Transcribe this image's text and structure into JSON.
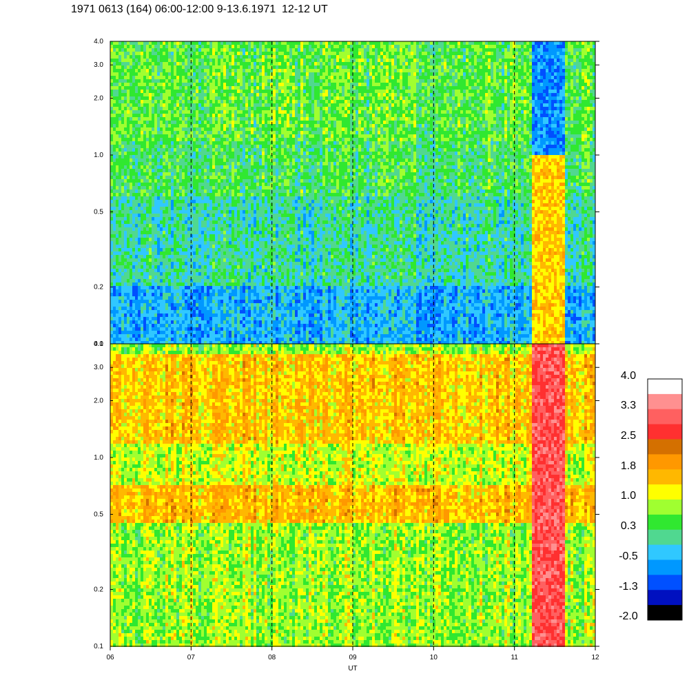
{
  "title": "1971 0613 (164) 06:00-12:00 9-13.6.1971  12-12 UT",
  "chart_data": {
    "type": "heatmap",
    "x_axis": {
      "label": "UT",
      "ticks": [
        "06",
        "07",
        "08",
        "09",
        "10",
        "11",
        "12"
      ],
      "range_hours": [
        6,
        12
      ],
      "dashed_hour_lines": [
        7,
        8,
        9,
        10,
        11
      ]
    },
    "y_axis": {
      "scale": "log",
      "range": [
        0.1,
        4.0
      ],
      "ticks": [
        {
          "value": 0.1,
          "label": "0.1"
        },
        {
          "value": 0.2,
          "label": "0.2"
        },
        {
          "value": 0.5,
          "label": "0.5"
        },
        {
          "value": 1.0,
          "label": "1.0"
        },
        {
          "value": 2.0,
          "label": "2.0"
        },
        {
          "value": 3.0,
          "label": "3.0"
        },
        {
          "value": 4.0,
          "label": "4.0"
        }
      ]
    },
    "panels": [
      {
        "name": "upper",
        "description_levels": [
          {
            "y_from": 0.1,
            "y_to": 0.2,
            "dominant_level": -0.5
          },
          {
            "y_from": 0.2,
            "y_to": 0.6,
            "dominant_level": 0.0
          },
          {
            "y_from": 0.6,
            "y_to": 1.2,
            "dominant_level": 0.3
          },
          {
            "y_from": 1.2,
            "y_to": 4.0,
            "dominant_level": 0.5
          }
        ],
        "event": {
          "x_from": 11.2,
          "x_to": 11.6,
          "peak_level": 1.5
        }
      },
      {
        "name": "lower",
        "description_levels": [
          {
            "y_from": 0.1,
            "y_to": 0.45,
            "dominant_level": 0.8
          },
          {
            "y_from": 0.45,
            "y_to": 0.7,
            "dominant_level": 1.6
          },
          {
            "y_from": 0.7,
            "y_to": 1.2,
            "dominant_level": 1.0
          },
          {
            "y_from": 1.2,
            "y_to": 3.5,
            "dominant_level": 1.5
          },
          {
            "y_from": 3.5,
            "y_to": 4.0,
            "dominant_level": 0.8
          }
        ],
        "event": {
          "x_from": 11.2,
          "x_to": 11.6,
          "peak_level": 3.0
        }
      }
    ],
    "colorbar": {
      "labels": [
        "4.0",
        "3.3",
        "2.5",
        "1.8",
        "1.0",
        "0.3",
        "-0.5",
        "-1.3",
        "-2.0"
      ],
      "colors": [
        "#ffffff",
        "#ff9090",
        "#ff6060",
        "#ff3030",
        "#d47000",
        "#ff9800",
        "#ffb800",
        "#ffff00",
        "#a0ff30",
        "#30e830",
        "#50d890",
        "#30c8ff",
        "#0098ff",
        "#0050ff",
        "#0010c0",
        "#000000"
      ]
    }
  }
}
